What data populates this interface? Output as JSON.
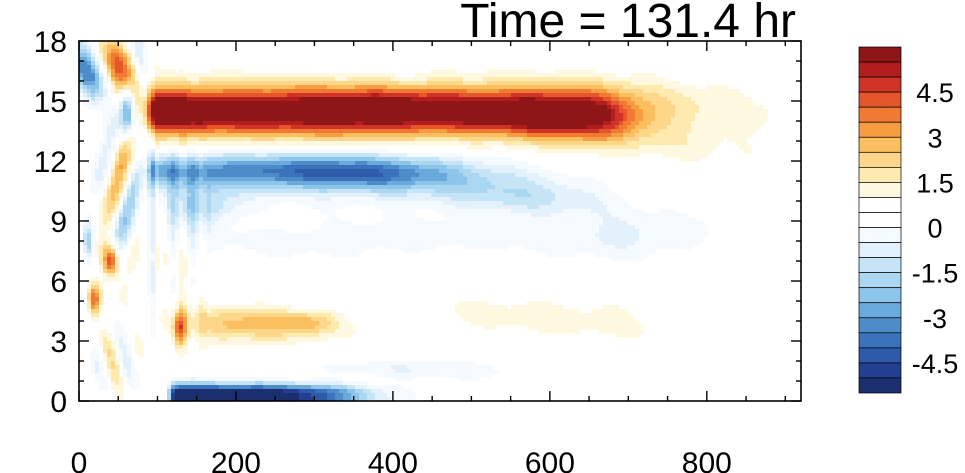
{
  "chart_data": {
    "type": "heatmap",
    "title": "Time = 131.4 hr",
    "xlabel": "",
    "ylabel": "",
    "xlim": [
      0,
      920
    ],
    "ylim": [
      0,
      18
    ],
    "x_ticks": [
      "0",
      "200",
      "400",
      "600",
      "800"
    ],
    "y_ticks": [
      "0",
      "3",
      "6",
      "9",
      "12",
      "15",
      "18"
    ],
    "colorbar": {
      "levels": [
        -5.5,
        -5,
        -4.5,
        -4,
        -3.5,
        -3,
        -2.5,
        -2,
        -1.5,
        -1,
        -0.5,
        0,
        0.5,
        1,
        1.5,
        2,
        2.5,
        3,
        3.5,
        4,
        4.5,
        5,
        5.5
      ],
      "tick_labels": [
        "4.5",
        "3",
        "1.5",
        "0",
        "-1.5",
        "-3",
        "-4.5"
      ],
      "colors": [
        "#1b2f6e",
        "#223f90",
        "#2d5aa9",
        "#3a72bb",
        "#4e8cc9",
        "#6aa9dc",
        "#8cc4ea",
        "#aad6f1",
        "#c5e4f6",
        "#e2f1fb",
        "#f4fafe",
        "#ffffff",
        "#ffffff",
        "#fff8e0",
        "#feeaaf",
        "#fdd68a",
        "#fbbf60",
        "#f79d41",
        "#f07a31",
        "#e5572a",
        "#cf3326",
        "#b21e1e",
        "#8e1616"
      ]
    },
    "features": [
      {
        "name": "upper warm band",
        "x": [
          85,
          720
        ],
        "y": [
          13.3,
          16.3
        ],
        "peak": 5.5,
        "sign": "positive"
      },
      {
        "name": "cold band",
        "x": [
          90,
          760
        ],
        "y": [
          10.2,
          13.0
        ],
        "peak": -5.0,
        "sign": "negative"
      },
      {
        "name": "surface cold band",
        "x": [
          115,
          430
        ],
        "y": [
          0.0,
          1.1
        ],
        "peak": -5.5,
        "sign": "negative"
      },
      {
        "name": "low-level warm patch",
        "x": [
          110,
          330
        ],
        "y": [
          2.0,
          5.0
        ],
        "peak": 2.5,
        "sign": "positive"
      },
      {
        "name": "upper-right warm patch",
        "x": [
          560,
          900
        ],
        "y": [
          12.5,
          16.5
        ],
        "peak": 1.0,
        "sign": "positive"
      },
      {
        "name": "mid-level weak cold band",
        "x": [
          100,
          800
        ],
        "y": [
          6.5,
          9.5
        ],
        "peak": -1.5,
        "sign": "negative"
      }
    ]
  }
}
